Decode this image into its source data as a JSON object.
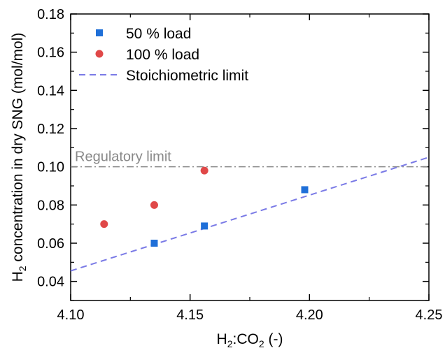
{
  "chart_data": {
    "type": "scatter",
    "xlabel_main": "H",
    "xlabel_sub": "2",
    "xlabel_mid": ":CO",
    "xlabel_sub2": "2",
    "xlabel_tail": " (-)",
    "ylabel_main": "H",
    "ylabel_sub": "2",
    "ylabel_tail": " concentration in dry SNG (mol/mol)",
    "xlim": [
      4.1,
      4.25
    ],
    "ylim": [
      0.03,
      0.18
    ],
    "x_ticks": [
      4.1,
      4.15,
      4.2,
      4.25
    ],
    "x_tick_labels": [
      "4.10",
      "4.15",
      "4.20",
      "4.25"
    ],
    "y_ticks": [
      0.04,
      0.06,
      0.08,
      0.1,
      0.12,
      0.14,
      0.16,
      0.18
    ],
    "y_tick_labels": [
      "0.04",
      "0.06",
      "0.08",
      "0.10",
      "0.12",
      "0.14",
      "0.16",
      "0.18"
    ],
    "series": [
      {
        "name": "50 % load",
        "marker": "square",
        "color": "#1f6fd8",
        "x": [
          4.135,
          4.156,
          4.198
        ],
        "y": [
          0.06,
          0.069,
          0.088
        ]
      },
      {
        "name": "100 % load",
        "marker": "circle",
        "color": "#e04848",
        "x": [
          4.114,
          4.135,
          4.156
        ],
        "y": [
          0.07,
          0.08,
          0.098
        ]
      }
    ],
    "lines": [
      {
        "name": "Stoichiometric limit",
        "style": "dashed",
        "color": "#7a7ae6",
        "x": [
          4.1,
          4.25
        ],
        "y": [
          0.0455,
          0.105
        ]
      }
    ],
    "reference_line": {
      "label": "Regulatory limit",
      "y": 0.1,
      "style": "dash-dot",
      "color": "#888888"
    },
    "legend_position": "top-left",
    "grid": false
  }
}
